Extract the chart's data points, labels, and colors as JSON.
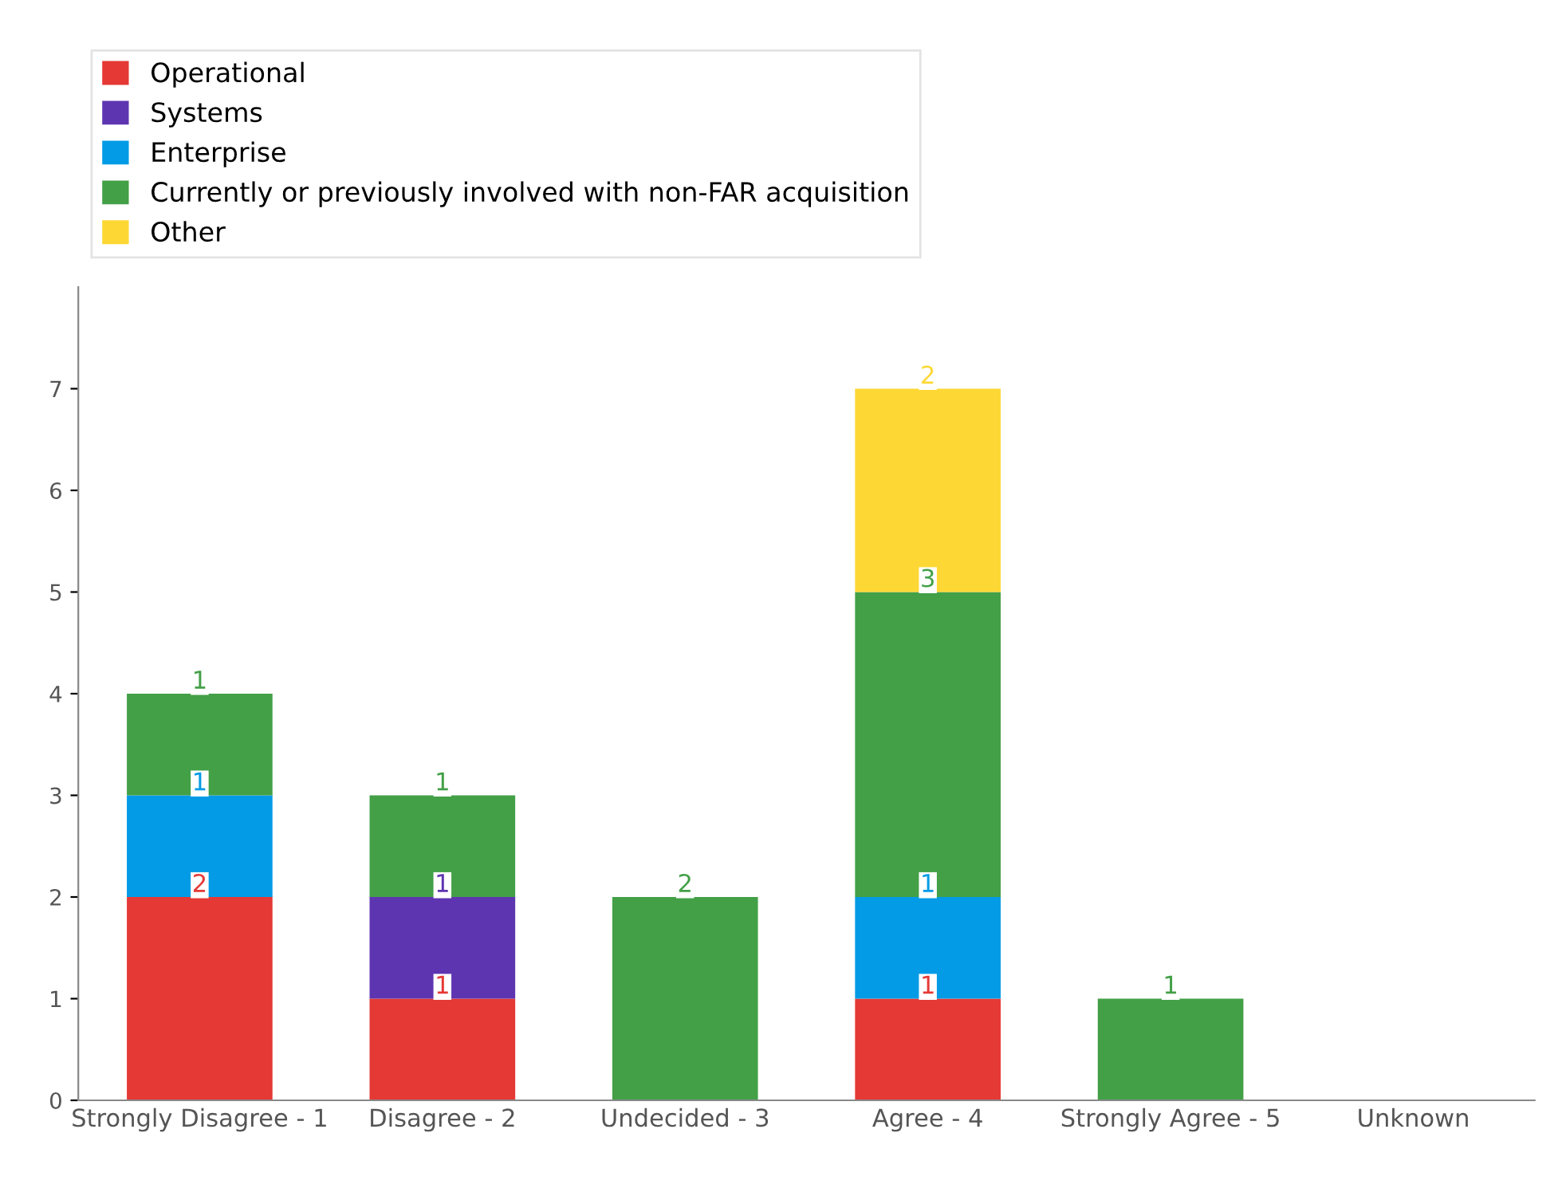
{
  "chart_data": {
    "type": "bar",
    "stacked": true,
    "data_labels": true,
    "legend": "top left",
    "grid": false,
    "categories": [
      "Strongly Disagree - 1",
      "Disagree - 2",
      "Undecided - 3",
      "Agree - 4",
      "Strongly Agree - 5",
      "Unknown"
    ],
    "ylim": [
      0,
      8
    ],
    "yticks": [
      0,
      1,
      2,
      3,
      4,
      5,
      6,
      7
    ],
    "series": [
      {
        "name": "Operational",
        "color": "#e53935",
        "values": [
          2,
          1,
          null,
          1,
          null,
          null
        ]
      },
      {
        "name": "Systems",
        "color": "#5e35b1",
        "values": [
          null,
          1,
          null,
          null,
          null,
          null
        ]
      },
      {
        "name": "Enterprise",
        "color": "#039be5",
        "values": [
          1,
          null,
          null,
          1,
          null,
          null
        ]
      },
      {
        "name": "Currently or previously involved with non-FAR acquisition",
        "color": "#43a047",
        "values": [
          1,
          1,
          2,
          3,
          1,
          null
        ]
      },
      {
        "name": "Other",
        "color": "#fdd835",
        "values": [
          null,
          null,
          null,
          2,
          null,
          null
        ]
      }
    ]
  }
}
